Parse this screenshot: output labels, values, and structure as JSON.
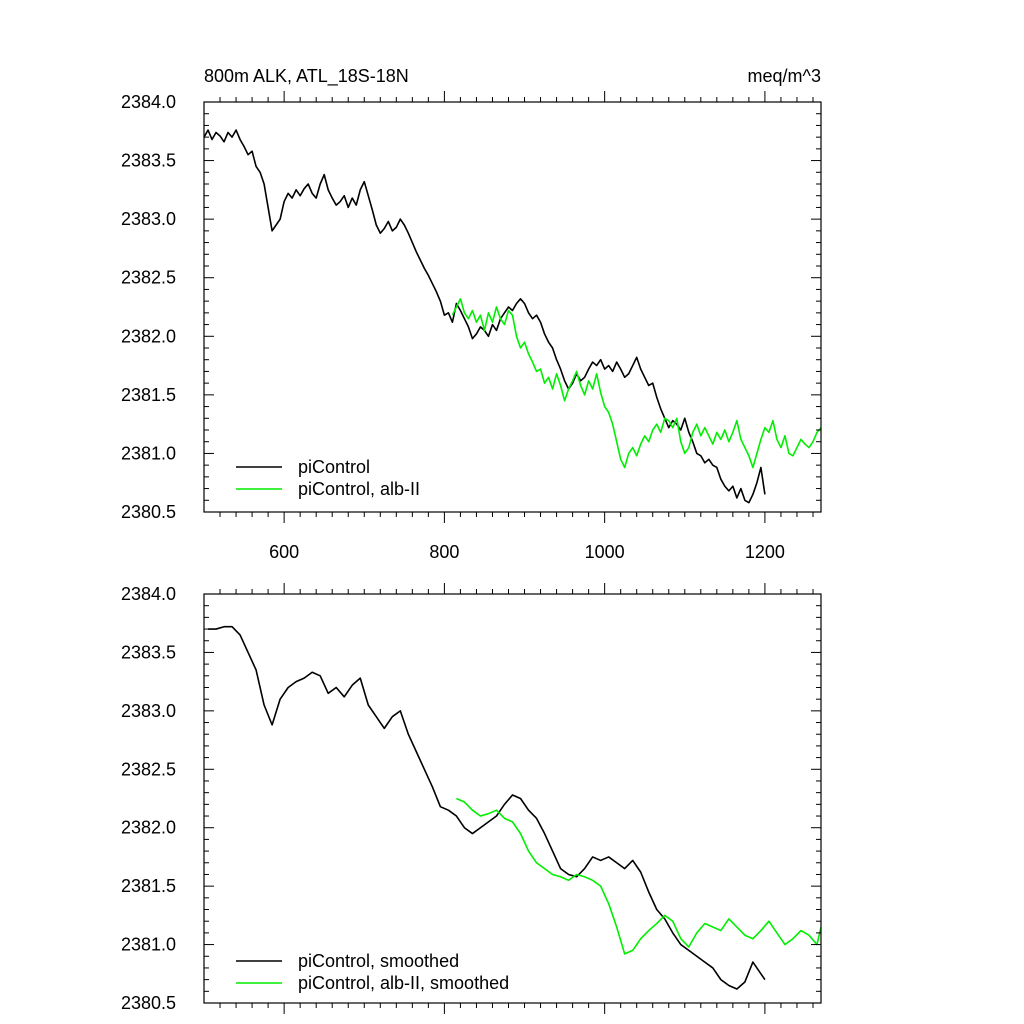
{
  "header": {
    "left_title": "800m ALK, ATL_18S-18N",
    "right_title": "meq/m^3"
  },
  "colors": {
    "picontrol": "#000000",
    "alb_ii": "#00ee00",
    "axis": "#000000"
  },
  "chart_data": [
    {
      "type": "line",
      "panel": "top",
      "xlim": [
        500,
        1270
      ],
      "ylim": [
        2380.5,
        2384.0
      ],
      "x_ticks": [
        600,
        800,
        1000,
        1200
      ],
      "x_tick_labels": [
        "600",
        "800",
        "1000",
        "1200"
      ],
      "y_ticks": [
        2380.5,
        2381.0,
        2381.5,
        2382.0,
        2382.5,
        2383.0,
        2383.5,
        2384.0
      ],
      "y_tick_labels": [
        "2380.5",
        "2381.0",
        "2381.5",
        "2382.0",
        "2382.5",
        "2383.0",
        "2383.5",
        "2384.0"
      ],
      "legend_position": "bottom-left",
      "series": [
        {
          "name": "piControl",
          "color": "#000000",
          "x": [
            500,
            505,
            510,
            515,
            520,
            525,
            530,
            535,
            540,
            545,
            550,
            555,
            560,
            565,
            570,
            575,
            580,
            585,
            590,
            595,
            600,
            605,
            610,
            615,
            620,
            625,
            630,
            635,
            640,
            645,
            650,
            655,
            660,
            665,
            670,
            675,
            680,
            685,
            690,
            695,
            700,
            705,
            710,
            715,
            720,
            725,
            730,
            735,
            740,
            745,
            750,
            755,
            760,
            765,
            770,
            775,
            780,
            785,
            790,
            795,
            800,
            805,
            810,
            815,
            820,
            825,
            830,
            835,
            840,
            845,
            850,
            855,
            860,
            865,
            870,
            875,
            880,
            885,
            890,
            895,
            900,
            905,
            910,
            915,
            920,
            925,
            930,
            935,
            940,
            945,
            950,
            955,
            960,
            965,
            970,
            975,
            980,
            985,
            990,
            995,
            1000,
            1005,
            1010,
            1015,
            1020,
            1025,
            1030,
            1035,
            1040,
            1045,
            1050,
            1055,
            1060,
            1065,
            1070,
            1075,
            1080,
            1085,
            1090,
            1095,
            1100,
            1105,
            1110,
            1115,
            1120,
            1125,
            1130,
            1135,
            1140,
            1145,
            1150,
            1155,
            1160,
            1165,
            1170,
            1175,
            1180,
            1185,
            1190,
            1195,
            1200
          ],
          "y": [
            2383.7,
            2383.76,
            2383.68,
            2383.74,
            2383.71,
            2383.66,
            2383.74,
            2383.7,
            2383.76,
            2383.68,
            2383.62,
            2383.55,
            2383.58,
            2383.45,
            2383.4,
            2383.3,
            2383.1,
            2382.9,
            2382.95,
            2383.0,
            2383.15,
            2383.22,
            2383.18,
            2383.25,
            2383.2,
            2383.26,
            2383.3,
            2383.22,
            2383.18,
            2383.3,
            2383.38,
            2383.25,
            2383.18,
            2383.12,
            2383.15,
            2383.2,
            2383.1,
            2383.18,
            2383.12,
            2383.25,
            2383.32,
            2383.2,
            2383.08,
            2382.95,
            2382.88,
            2382.92,
            2382.98,
            2382.9,
            2382.93,
            2383.0,
            2382.95,
            2382.88,
            2382.8,
            2382.72,
            2382.65,
            2382.58,
            2382.52,
            2382.45,
            2382.38,
            2382.3,
            2382.18,
            2382.2,
            2382.12,
            2382.28,
            2382.22,
            2382.15,
            2382.08,
            2381.98,
            2382.02,
            2382.08,
            2382.05,
            2382.0,
            2382.1,
            2382.05,
            2382.15,
            2382.2,
            2382.25,
            2382.22,
            2382.28,
            2382.32,
            2382.28,
            2382.2,
            2382.15,
            2382.18,
            2382.12,
            2382.02,
            2381.95,
            2381.9,
            2381.8,
            2381.72,
            2381.62,
            2381.55,
            2381.6,
            2381.68,
            2381.62,
            2381.65,
            2381.72,
            2381.78,
            2381.75,
            2381.8,
            2381.72,
            2381.75,
            2381.7,
            2381.78,
            2381.72,
            2381.65,
            2381.68,
            2381.75,
            2381.82,
            2381.72,
            2381.65,
            2381.58,
            2381.6,
            2381.48,
            2381.38,
            2381.3,
            2381.22,
            2381.28,
            2381.25,
            2381.2,
            2381.3,
            2381.18,
            2381.1,
            2381.0,
            2380.98,
            2380.92,
            2380.95,
            2380.9,
            2380.88,
            2380.78,
            2380.72,
            2380.68,
            2380.72,
            2380.62,
            2380.7,
            2380.6,
            2380.58,
            2380.65,
            2380.75,
            2380.88,
            2380.65
          ]
        },
        {
          "name": "piControl, alb-II",
          "color": "#00ee00",
          "x": [
            810,
            815,
            820,
            825,
            830,
            835,
            840,
            845,
            850,
            855,
            860,
            865,
            870,
            875,
            880,
            885,
            890,
            895,
            900,
            905,
            910,
            915,
            920,
            925,
            930,
            935,
            940,
            945,
            950,
            955,
            960,
            965,
            970,
            975,
            980,
            985,
            990,
            995,
            1000,
            1005,
            1010,
            1015,
            1020,
            1025,
            1030,
            1035,
            1040,
            1045,
            1050,
            1055,
            1060,
            1065,
            1070,
            1075,
            1080,
            1085,
            1090,
            1095,
            1100,
            1105,
            1110,
            1115,
            1120,
            1125,
            1130,
            1135,
            1140,
            1145,
            1150,
            1155,
            1160,
            1165,
            1170,
            1175,
            1180,
            1185,
            1190,
            1195,
            1200,
            1205,
            1210,
            1215,
            1220,
            1225,
            1230,
            1235,
            1240,
            1245,
            1250,
            1255,
            1260,
            1265,
            1270
          ],
          "y": [
            2382.18,
            2382.25,
            2382.32,
            2382.2,
            2382.15,
            2382.22,
            2382.12,
            2382.18,
            2382.05,
            2382.2,
            2382.12,
            2382.25,
            2382.15,
            2382.1,
            2382.22,
            2382.18,
            2382.0,
            2381.9,
            2381.95,
            2381.85,
            2381.78,
            2381.7,
            2381.72,
            2381.6,
            2381.65,
            2381.55,
            2381.68,
            2381.58,
            2381.45,
            2381.55,
            2381.62,
            2381.7,
            2381.58,
            2381.5,
            2381.62,
            2381.55,
            2381.68,
            2381.52,
            2381.4,
            2381.35,
            2381.25,
            2381.1,
            2380.95,
            2380.88,
            2381.0,
            2381.05,
            2380.98,
            2381.08,
            2381.15,
            2381.1,
            2381.2,
            2381.25,
            2381.18,
            2381.3,
            2381.28,
            2381.22,
            2381.3,
            2381.1,
            2381.0,
            2381.05,
            2381.18,
            2381.25,
            2381.15,
            2381.22,
            2381.15,
            2381.08,
            2381.18,
            2381.12,
            2381.2,
            2381.1,
            2381.18,
            2381.28,
            2381.12,
            2381.05,
            2380.98,
            2380.88,
            2381.0,
            2381.12,
            2381.22,
            2381.18,
            2381.28,
            2381.12,
            2381.05,
            2381.15,
            2381.0,
            2380.98,
            2381.05,
            2381.12,
            2381.08,
            2381.05,
            2381.1,
            2381.18,
            2381.22
          ]
        }
      ]
    },
    {
      "type": "line",
      "panel": "bottom",
      "xlim": [
        500,
        1270
      ],
      "ylim": [
        2380.5,
        2384.0
      ],
      "x_ticks": [
        600,
        800,
        1000,
        1200
      ],
      "x_tick_labels": [],
      "y_ticks": [
        2380.5,
        2381.0,
        2381.5,
        2382.0,
        2382.5,
        2383.0,
        2383.5,
        2384.0
      ],
      "y_tick_labels": [
        "2380.5",
        "2381.0",
        "2381.5",
        "2382.0",
        "2382.5",
        "2383.0",
        "2383.5",
        "2384.0"
      ],
      "legend_position": "bottom-left",
      "series": [
        {
          "name": "piControl, smoothed",
          "color": "#000000",
          "x": [
            505,
            515,
            525,
            535,
            545,
            555,
            565,
            575,
            585,
            595,
            605,
            615,
            625,
            635,
            645,
            655,
            665,
            675,
            685,
            695,
            705,
            715,
            725,
            735,
            745,
            755,
            765,
            775,
            785,
            795,
            805,
            815,
            825,
            835,
            845,
            855,
            865,
            875,
            885,
            895,
            905,
            915,
            925,
            935,
            945,
            955,
            965,
            975,
            985,
            995,
            1005,
            1015,
            1025,
            1035,
            1045,
            1055,
            1065,
            1075,
            1085,
            1095,
            1105,
            1115,
            1125,
            1135,
            1145,
            1155,
            1165,
            1175,
            1185,
            1195,
            1200
          ],
          "y": [
            2383.7,
            2383.7,
            2383.72,
            2383.72,
            2383.65,
            2383.5,
            2383.35,
            2383.05,
            2382.88,
            2383.1,
            2383.2,
            2383.25,
            2383.28,
            2383.33,
            2383.3,
            2383.15,
            2383.2,
            2383.12,
            2383.22,
            2383.28,
            2383.05,
            2382.95,
            2382.85,
            2382.95,
            2383.0,
            2382.8,
            2382.65,
            2382.5,
            2382.35,
            2382.18,
            2382.15,
            2382.1,
            2382.0,
            2381.95,
            2382.0,
            2382.05,
            2382.1,
            2382.2,
            2382.28,
            2382.25,
            2382.15,
            2382.08,
            2381.95,
            2381.8,
            2381.65,
            2381.6,
            2381.58,
            2381.65,
            2381.75,
            2381.72,
            2381.75,
            2381.7,
            2381.65,
            2381.72,
            2381.62,
            2381.45,
            2381.3,
            2381.22,
            2381.1,
            2381.0,
            2380.95,
            2380.9,
            2380.85,
            2380.8,
            2380.7,
            2380.65,
            2380.62,
            2380.68,
            2380.85,
            2380.75,
            2380.7
          ]
        },
        {
          "name": "piControl, alb-II, smoothed",
          "color": "#00ee00",
          "x": [
            815,
            825,
            835,
            845,
            855,
            865,
            875,
            885,
            895,
            905,
            915,
            925,
            935,
            945,
            955,
            965,
            975,
            985,
            995,
            1005,
            1015,
            1025,
            1035,
            1045,
            1055,
            1065,
            1075,
            1085,
            1095,
            1105,
            1115,
            1125,
            1135,
            1145,
            1155,
            1165,
            1175,
            1185,
            1195,
            1205,
            1215,
            1225,
            1235,
            1245,
            1255,
            1265,
            1270
          ],
          "y": [
            2382.25,
            2382.22,
            2382.15,
            2382.1,
            2382.12,
            2382.15,
            2382.08,
            2382.05,
            2381.95,
            2381.8,
            2381.7,
            2381.65,
            2381.6,
            2381.58,
            2381.55,
            2381.6,
            2381.58,
            2381.55,
            2381.5,
            2381.35,
            2381.15,
            2380.92,
            2380.95,
            2381.05,
            2381.12,
            2381.18,
            2381.25,
            2381.2,
            2381.05,
            2380.98,
            2381.1,
            2381.18,
            2381.15,
            2381.12,
            2381.22,
            2381.15,
            2381.08,
            2381.05,
            2381.12,
            2381.2,
            2381.1,
            2381.0,
            2381.05,
            2381.12,
            2381.08,
            2381.0,
            2381.15
          ]
        }
      ]
    }
  ]
}
